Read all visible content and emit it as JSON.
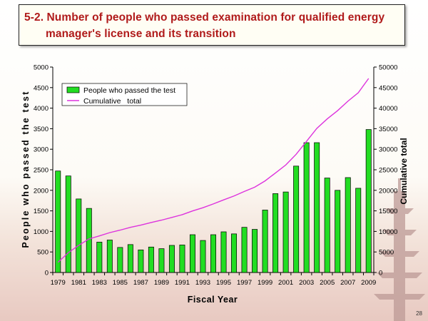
{
  "slide": {
    "title_line1": "5-2. Number of people who passed examination for qualified energy",
    "title_line2": "manager's license and its transition",
    "page_number": "28"
  },
  "chart_data": {
    "type": "bar",
    "title": "",
    "xlabel": "Fiscal Year",
    "ylabel": "People who passed the test",
    "y2label": "Cumulative total",
    "ylim": [
      0,
      5000
    ],
    "y2lim": [
      0,
      50000
    ],
    "yticks": [
      0,
      500,
      1000,
      1500,
      2000,
      2500,
      3000,
      3500,
      4000,
      4500,
      5000
    ],
    "y2ticks": [
      0,
      5000,
      10000,
      15000,
      20000,
      25000,
      30000,
      35000,
      40000,
      45000,
      50000
    ],
    "x_tick_labels": [
      "1979",
      "1981",
      "1983",
      "1985",
      "1987",
      "1989",
      "1991",
      "1993",
      "1995",
      "1997",
      "1999",
      "2001",
      "2003",
      "2005",
      "2007",
      "2009"
    ],
    "legend_position": "top-left",
    "grid": false,
    "categories": [
      1979,
      1980,
      1981,
      1982,
      1983,
      1984,
      1985,
      1986,
      1987,
      1988,
      1989,
      1990,
      1991,
      1992,
      1993,
      1994,
      1995,
      1996,
      1997,
      1998,
      1999,
      2000,
      2001,
      2002,
      2003,
      2004,
      2005,
      2006,
      2007,
      2008,
      2009
    ],
    "series": [
      {
        "name": "People who passed the test",
        "type": "bar",
        "axis": "left",
        "color": "#22dd22",
        "values": [
          2470,
          2350,
          1790,
          1560,
          740,
          790,
          610,
          680,
          550,
          620,
          580,
          660,
          670,
          920,
          780,
          920,
          990,
          940,
          1100,
          1050,
          1520,
          1920,
          1960,
          2590,
          3160,
          3160,
          2300,
          2000,
          2310,
          2050,
          3480
        ]
      },
      {
        "name": "Cumulative   total",
        "type": "line",
        "axis": "right",
        "color": "#dd33dd",
        "values": [
          2470,
          4820,
          6610,
          8170,
          8910,
          9700,
          10310,
          10990,
          11540,
          12160,
          12740,
          13400,
          14070,
          14990,
          15770,
          16690,
          17680,
          18620,
          19720,
          20770,
          22290,
          24210,
          26170,
          28760,
          31920,
          35080,
          37380,
          39380,
          41690,
          43740,
          47220
        ]
      }
    ]
  }
}
